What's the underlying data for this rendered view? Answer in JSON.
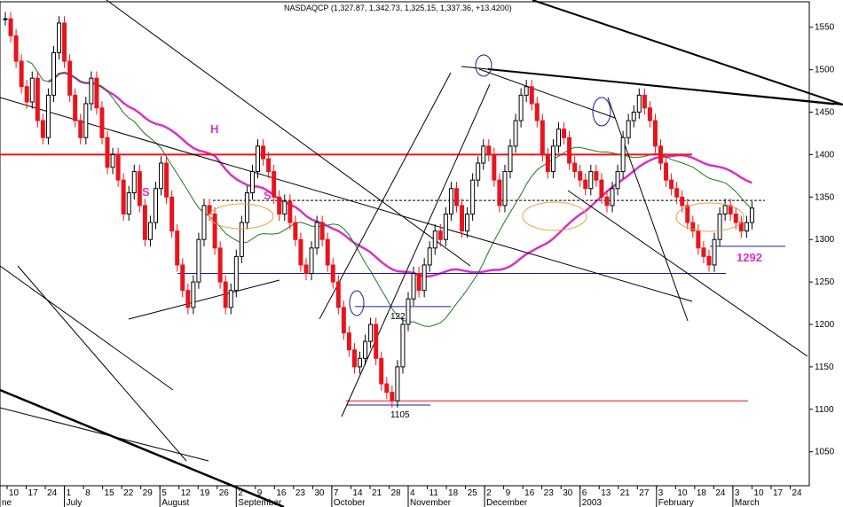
{
  "chart_data": {
    "type": "candlestick",
    "title": "NASDAQCP (1,327.87, 1,342.73, 1,325.15, 1,337.36, +13.4200)",
    "ylim": [
      1010,
      1580
    ],
    "y_ticks": [
      1050,
      1100,
      1150,
      1200,
      1250,
      1300,
      1350,
      1400,
      1450,
      1500,
      1550
    ],
    "x_tick_labels": [
      "10",
      "17",
      "24",
      "1",
      "8",
      "15",
      "22",
      "29",
      "5",
      "12",
      "19",
      "26",
      "2",
      "9",
      "16",
      "23",
      "30",
      "7",
      "14",
      "21",
      "28",
      "4",
      "11",
      "18",
      "25",
      "2",
      "9",
      "16",
      "23",
      "30",
      "6",
      "13",
      "21",
      "27",
      "3",
      "10",
      "18",
      "24",
      "3",
      "10",
      "17",
      "24"
    ],
    "month_labels": [
      "ne",
      "July",
      "August",
      "September",
      "October",
      "November",
      "December",
      "2003",
      "February",
      "March"
    ],
    "closes": [
      1560,
      1540,
      1510,
      1480,
      1462,
      1490,
      1440,
      1420,
      1470,
      1520,
      1555,
      1510,
      1470,
      1440,
      1420,
      1460,
      1490,
      1455,
      1420,
      1385,
      1400,
      1370,
      1330,
      1355,
      1380,
      1340,
      1300,
      1320,
      1360,
      1390,
      1350,
      1310,
      1270,
      1240,
      1220,
      1250,
      1300,
      1340,
      1330,
      1290,
      1250,
      1220,
      1240,
      1280,
      1320,
      1355,
      1380,
      1410,
      1395,
      1380,
      1350,
      1330,
      1345,
      1320,
      1300,
      1270,
      1260,
      1290,
      1320,
      1300,
      1270,
      1250,
      1220,
      1190,
      1170,
      1150,
      1160,
      1180,
      1200,
      1160,
      1130,
      1120,
      1110,
      1150,
      1200,
      1230,
      1260,
      1240,
      1270,
      1290,
      1310,
      1300,
      1330,
      1360,
      1340,
      1310,
      1330,
      1370,
      1390,
      1410,
      1400,
      1370,
      1340,
      1380,
      1410,
      1440,
      1470,
      1480,
      1460,
      1440,
      1400,
      1380,
      1410,
      1430,
      1420,
      1390,
      1380,
      1370,
      1360,
      1380,
      1370,
      1350,
      1340,
      1360,
      1380,
      1420,
      1440,
      1450,
      1470,
      1455,
      1440,
      1410,
      1390,
      1370,
      1360,
      1350,
      1340,
      1320,
      1310,
      1290,
      1280,
      1270,
      1300,
      1330,
      1340,
      1330,
      1320,
      1310,
      1320,
      1337
    ],
    "annotations": [
      {
        "text": "S"
      },
      {
        "text": "H"
      },
      {
        "text": "S"
      }
    ],
    "levels": [
      {
        "label": "1221",
        "value": 1221
      },
      {
        "label": "1105",
        "value": 1105
      },
      {
        "label": "1292",
        "value": 1292
      },
      {
        "label": "",
        "value": 1400
      },
      {
        "label": "",
        "value": 1260
      },
      {
        "label": "",
        "value": 1110
      }
    ],
    "colors": {
      "down": "#e8141c",
      "up": "#000000",
      "ma_long": "#d633c4",
      "ma_mid": "#1a7a1a",
      "resistance": "#e8141c",
      "support": "#1c1c9a",
      "trend": "#000000",
      "ellipse": "#e8a040"
    }
  }
}
